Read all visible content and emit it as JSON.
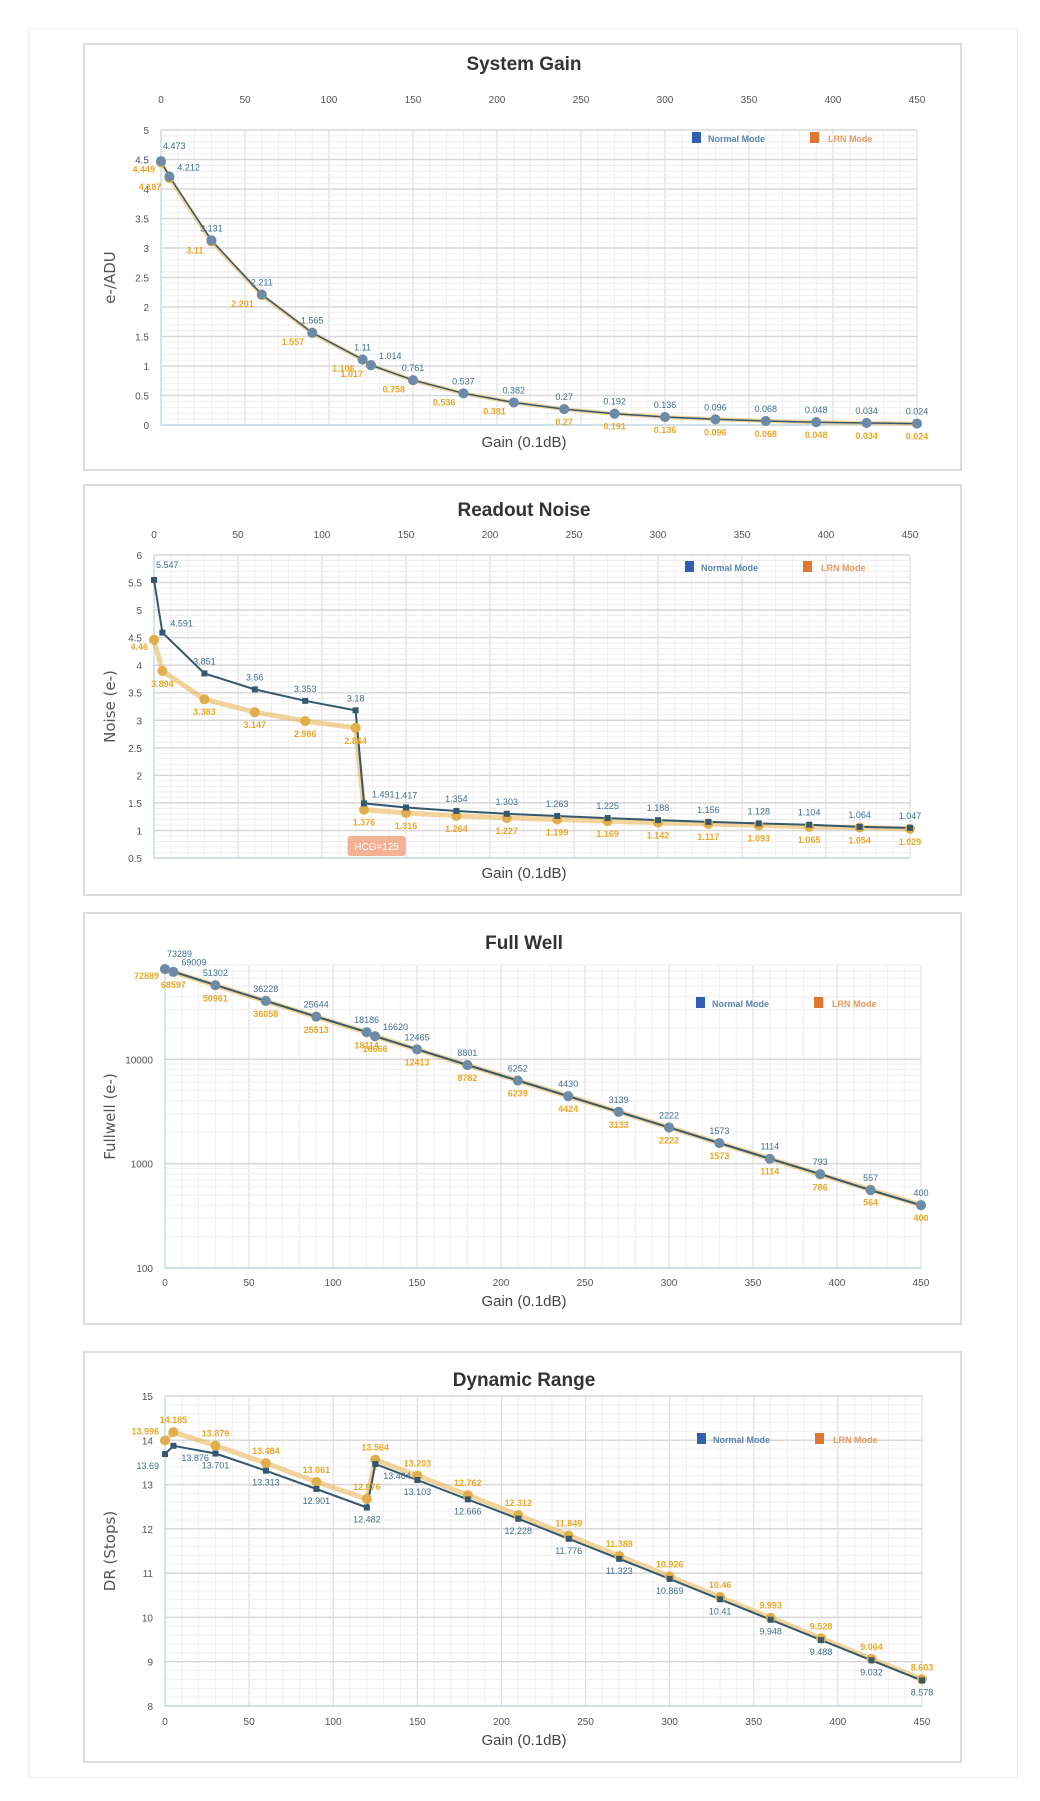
{
  "legend": {
    "normal_label": "Normal Mode",
    "lrn_label": "LRN Mode",
    "normal_color": "#2f5fb0",
    "lrn_color": "#e0762f"
  },
  "colors": {
    "normal_line": "#34586e",
    "lrn_line": "#e8b04a",
    "normal_marker": "#6b8ba8",
    "lrn_marker": "#e0ae4a",
    "label_normal": "#3f6f8f",
    "label_lrn": "#e8a92a",
    "grid_major": "#d8d8d8",
    "grid_minor": "#efefef",
    "hcg_badge": "#f2a98a"
  },
  "chart_data": [
    {
      "id": "system-gain",
      "type": "line",
      "title": "System Gain",
      "xlabel": "Gain (0.1dB)",
      "ylabel": "e-/ADU",
      "x_axis_position": "top",
      "xlim": [
        0,
        450
      ],
      "xticks": [
        0,
        50,
        100,
        150,
        200,
        250,
        300,
        350,
        400,
        450
      ],
      "ylim": [
        0,
        5
      ],
      "yticks": [
        0,
        0.5,
        1,
        1.5,
        2,
        2.5,
        3,
        3.5,
        4,
        4.5,
        5
      ],
      "yscale": "linear",
      "grid": true,
      "legend_position": "top-right",
      "x": [
        0,
        5,
        30,
        60,
        90,
        120,
        125,
        150,
        180,
        210,
        240,
        270,
        300,
        330,
        360,
        390,
        420,
        450
      ],
      "series": [
        {
          "name": "Normal Mode",
          "values": [
            4.473,
            4.212,
            3.131,
            2.211,
            1.565,
            1.11,
            1.014,
            0.761,
            0.537,
            0.382,
            0.27,
            0.192,
            0.136,
            0.096,
            0.068,
            0.048,
            0.034,
            0.024
          ]
        },
        {
          "name": "LRN Mode",
          "values": [
            4.449,
            4.187,
            3.11,
            2.201,
            1.557,
            1.106,
            1.017,
            0.758,
            0.536,
            0.381,
            0.27,
            0.191,
            0.136,
            0.096,
            0.068,
            0.048,
            0.034,
            0.024
          ]
        }
      ]
    },
    {
      "id": "readout-noise",
      "type": "line",
      "title": "Readout Noise",
      "xlabel": "Gain (0.1dB)",
      "ylabel": "Noise (e-)",
      "x_axis_position": "top",
      "xlim": [
        0,
        450
      ],
      "xticks": [
        0,
        50,
        100,
        150,
        200,
        250,
        300,
        350,
        400,
        450
      ],
      "ylim": [
        0.5,
        6
      ],
      "yticks": [
        0.5,
        1,
        1.5,
        2,
        2.5,
        3,
        3.5,
        4,
        4.5,
        5,
        5.5,
        6
      ],
      "yscale": "linear",
      "grid": true,
      "legend_position": "top-right",
      "annotation": "HCG=125",
      "x": [
        0,
        5,
        30,
        60,
        90,
        120,
        125,
        150,
        180,
        210,
        240,
        270,
        300,
        330,
        360,
        390,
        420,
        450
      ],
      "series": [
        {
          "name": "Normal Mode",
          "values": [
            5.547,
            4.591,
            3.851,
            3.56,
            3.353,
            3.18,
            1.491,
            1.417,
            1.354,
            1.303,
            1.263,
            1.225,
            1.188,
            1.156,
            1.128,
            1.104,
            1.064,
            1.047
          ]
        },
        {
          "name": "LRN Mode",
          "values": [
            4.46,
            3.894,
            3.383,
            3.147,
            2.986,
            2.864,
            1.376,
            1.316,
            1.264,
            1.227,
            1.199,
            1.169,
            1.142,
            1.117,
            1.093,
            1.065,
            1.054,
            1.029
          ]
        }
      ]
    },
    {
      "id": "full-well",
      "type": "line",
      "title": "Full Well",
      "xlabel": "Gain (0.1dB)",
      "ylabel": "Fullwell (e-)",
      "x_axis_position": "bottom",
      "xlim": [
        0,
        450
      ],
      "xticks": [
        0,
        50,
        100,
        150,
        200,
        250,
        300,
        350,
        400,
        450
      ],
      "ylim": [
        100,
        80000
      ],
      "yticks": [
        100,
        1000,
        10000
      ],
      "yscale": "log",
      "grid": true,
      "legend_position": "top-right",
      "x": [
        0,
        5,
        30,
        60,
        90,
        120,
        125,
        150,
        180,
        210,
        240,
        270,
        300,
        330,
        360,
        390,
        420,
        450
      ],
      "series": [
        {
          "name": "Normal Mode",
          "values": [
            73289,
            69009,
            51302,
            36228,
            25644,
            18186,
            16620,
            12465,
            8801,
            6252,
            4430,
            3139,
            2222,
            1573,
            1114,
            793,
            557,
            400
          ]
        },
        {
          "name": "LRN Mode",
          "values": [
            72889,
            68597,
            50961,
            36058,
            25513,
            18114,
            16666,
            12413,
            8782,
            6239,
            4424,
            3133,
            2222,
            1573,
            1114,
            786,
            564,
            400
          ]
        }
      ]
    },
    {
      "id": "dynamic-range",
      "type": "line",
      "title": "Dynamic Range",
      "xlabel": "Gain (0.1dB)",
      "ylabel": "DR (Stops)",
      "x_axis_position": "bottom",
      "xlim": [
        0,
        450
      ],
      "xticks": [
        0,
        50,
        100,
        150,
        200,
        250,
        300,
        350,
        400,
        450
      ],
      "ylim": [
        8,
        15
      ],
      "yticks": [
        8,
        9,
        10,
        11,
        12,
        13,
        14,
        15
      ],
      "yscale": "linear",
      "grid": true,
      "legend_position": "top-right",
      "x": [
        0,
        5,
        30,
        60,
        90,
        120,
        125,
        150,
        180,
        210,
        240,
        270,
        300,
        330,
        360,
        390,
        420,
        450
      ],
      "series": [
        {
          "name": "Normal Mode",
          "values": [
            13.69,
            13.876,
            13.701,
            13.313,
            12.901,
            12.482,
            13.464,
            13.103,
            12.666,
            12.228,
            11.776,
            11.323,
            10.869,
            10.41,
            9.948,
            9.488,
            9.032,
            8.578
          ]
        },
        {
          "name": "LRN Mode",
          "values": [
            13.996,
            14.185,
            13.879,
            13.484,
            13.061,
            12.676,
            13.564,
            13.203,
            12.762,
            12.312,
            11.849,
            11.388,
            10.926,
            10.46,
            9.993,
            9.528,
            9.064,
            8.603
          ]
        }
      ]
    }
  ]
}
